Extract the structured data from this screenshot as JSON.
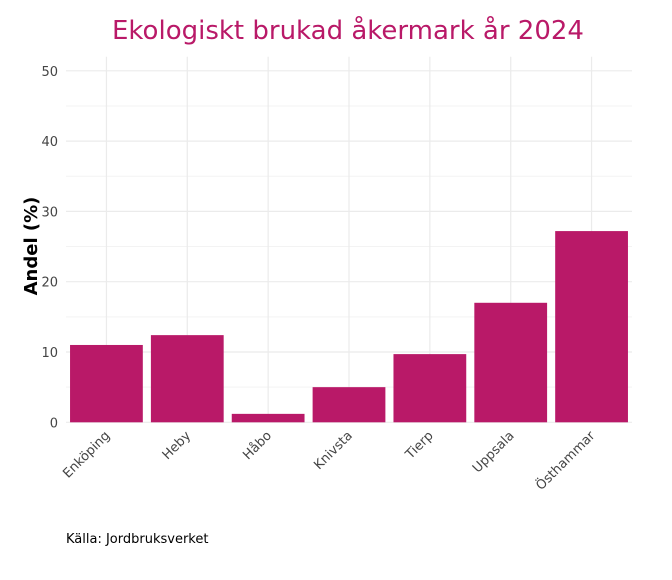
{
  "chart_data": {
    "type": "bar",
    "title": "Ekologiskt brukad åkermark år 2024",
    "xlabel": "",
    "ylabel": "Andel (%)",
    "categories": [
      "Enköping",
      "Heby",
      "Håbo",
      "Knivsta",
      "Tierp",
      "Uppsala",
      "Östhammar"
    ],
    "values": [
      11.0,
      12.4,
      1.2,
      5.0,
      9.7,
      17.0,
      27.2
    ],
    "ylim": [
      0,
      52
    ],
    "yticks": [
      0,
      10,
      20,
      30,
      40,
      50
    ],
    "grid": true,
    "caption": "Källa: Jordbruksverket",
    "bar_color": "#b91968",
    "title_color": "#b91968"
  }
}
